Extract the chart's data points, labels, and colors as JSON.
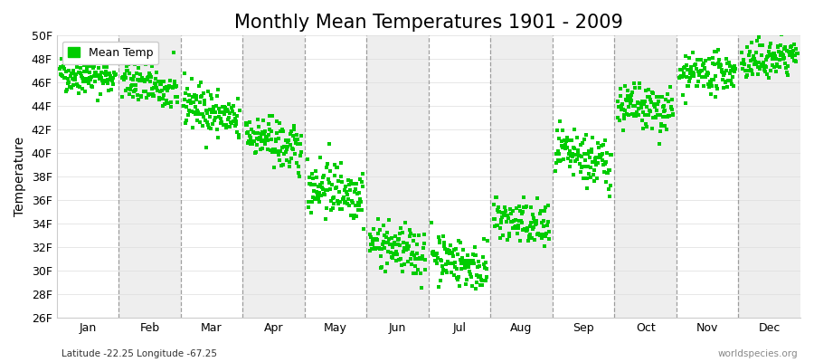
{
  "title": "Monthly Mean Temperatures 1901 - 2009",
  "ylabel": "Temperature",
  "xlabel_bottom_left": "Latitude -22.25 Longitude -67.25",
  "xlabel_bottom_right": "worldspecies.org",
  "legend_label": "Mean Temp",
  "ylim": [
    26,
    50
  ],
  "yticks": [
    26,
    28,
    30,
    32,
    34,
    36,
    38,
    40,
    42,
    44,
    46,
    48,
    50
  ],
  "ytick_labels": [
    "26F",
    "28F",
    "30F",
    "32F",
    "34F",
    "36F",
    "38F",
    "40F",
    "42F",
    "44F",
    "46F",
    "48F",
    "50F"
  ],
  "months": [
    "Jan",
    "Feb",
    "Mar",
    "Apr",
    "May",
    "Jun",
    "Jul",
    "Aug",
    "Sep",
    "Oct",
    "Nov",
    "Dec"
  ],
  "marker_color": "#00CC00",
  "marker": "s",
  "marker_size": 2.5,
  "background_color": "#ffffff",
  "band_colors": [
    "#ffffff",
    "#eeeeee"
  ],
  "title_fontsize": 15,
  "axis_label_fontsize": 10,
  "tick_fontsize": 9,
  "legend_fontsize": 9,
  "monthly_means_1901": [
    46.8,
    46.5,
    44.5,
    41.8,
    37.5,
    32.5,
    31.5,
    34.5,
    40.0,
    44.0,
    46.5,
    47.5
  ],
  "monthly_means_2009": [
    46.5,
    45.0,
    42.5,
    40.0,
    36.5,
    31.2,
    30.0,
    33.5,
    39.0,
    43.5,
    47.0,
    48.5
  ],
  "monthly_stds": [
    0.8,
    0.9,
    1.0,
    1.0,
    1.2,
    1.0,
    1.0,
    1.0,
    1.1,
    1.0,
    0.8,
    0.8
  ],
  "n_years": 109,
  "seed": 42
}
